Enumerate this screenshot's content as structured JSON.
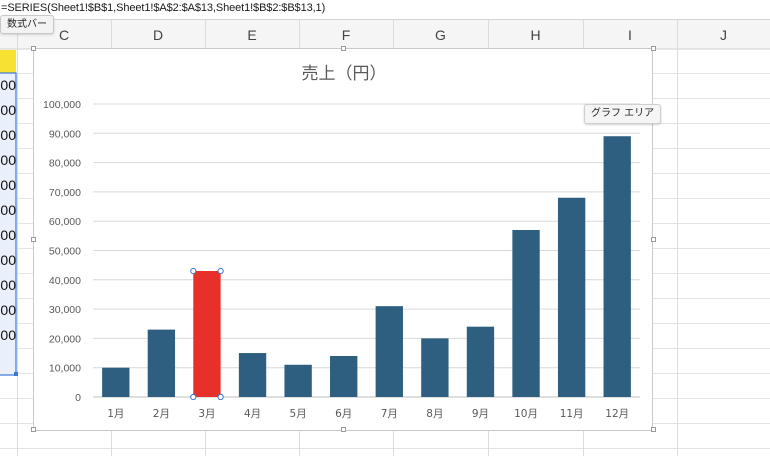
{
  "formula_bar": {
    "formula": "=SERIES(Sheet1!$B$1,Sheet1!$A$2:$A$13,Sheet1!$B$2:$B$13,1)",
    "tooltip": "数式バー"
  },
  "sheet": {
    "columns": [
      "C",
      "D",
      "E",
      "F",
      "G",
      "H",
      "I",
      "J"
    ],
    "partial_cells": [
      "00",
      "00",
      "00",
      "00",
      "00",
      "00",
      "00",
      "00",
      "00",
      "00",
      "00"
    ],
    "colors": {
      "gridline": "#e3e3e3",
      "header_bg": "#f5f5f5",
      "header_text": "#444444",
      "selection": "#3a78d4",
      "yellow_cell": "#f7e233",
      "range_fill": "#eaf0fb"
    }
  },
  "chart_tooltip": "グラフ エリア",
  "chart_data": {
    "type": "bar",
    "title": "売上（円）",
    "categories": [
      "1月",
      "2月",
      "3月",
      "4月",
      "5月",
      "6月",
      "7月",
      "8月",
      "9月",
      "10月",
      "11月",
      "12月"
    ],
    "values": [
      10000,
      23000,
      43000,
      15000,
      11000,
      14000,
      31000,
      20000,
      24000,
      57000,
      68000,
      89000
    ],
    "ylim": [
      0,
      100000
    ],
    "yticks": [
      "0",
      "10,000",
      "20,000",
      "30,000",
      "40,000",
      "50,000",
      "60,000",
      "70,000",
      "80,000",
      "90,000",
      "100,000"
    ],
    "selected_index": 2,
    "colors": {
      "bar": "#2e5f80",
      "selected": "#e8302a",
      "grid": "#d9d9d9",
      "axis": "#bfbfbf",
      "text": "#595959",
      "title": "#595959"
    },
    "grid": true,
    "legend": "none"
  }
}
